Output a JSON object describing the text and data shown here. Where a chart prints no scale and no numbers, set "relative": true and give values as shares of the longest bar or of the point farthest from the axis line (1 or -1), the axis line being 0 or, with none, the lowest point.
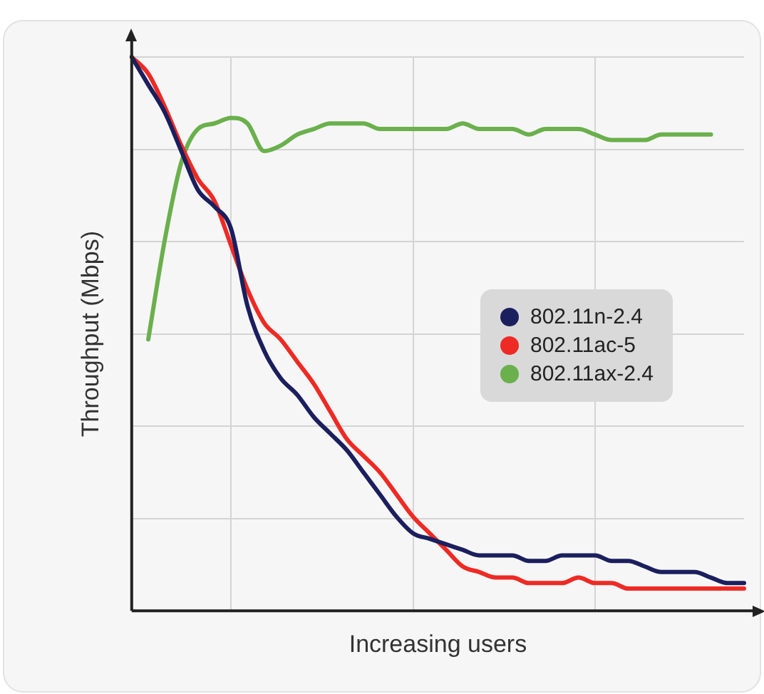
{
  "chart_data": {
    "type": "line",
    "relative": true,
    "xlabel": "Increasing users",
    "ylabel": "Throughput (Mbps)",
    "grid": true,
    "legend": "right",
    "marker": "none",
    "line_style": "solid",
    "categories": [
      null,
      null,
      null,
      null,
      null,
      null,
      null,
      null,
      null,
      null,
      null,
      null,
      null,
      null,
      null,
      null,
      null,
      null,
      null,
      null,
      null,
      null,
      null,
      null,
      null,
      null,
      null,
      null,
      null,
      null,
      null,
      null,
      null,
      null,
      null,
      null,
      null,
      null
    ],
    "series": [
      {
        "name": "802.11n-2.4",
        "color": "#1b1f5e",
        "values": [
          1.0,
          0.95,
          0.9,
          0.83,
          0.76,
          0.73,
          0.69,
          0.55,
          0.47,
          0.42,
          0.39,
          0.35,
          0.32,
          0.29,
          0.25,
          0.21,
          0.17,
          0.14,
          0.13,
          0.12,
          0.11,
          0.1,
          0.1,
          0.1,
          0.09,
          0.09,
          0.1,
          0.1,
          0.1,
          0.09,
          0.09,
          0.08,
          0.07,
          0.07,
          0.07,
          0.06,
          0.05,
          0.05
        ]
      },
      {
        "name": "802.11ac-5",
        "color": "#ee2a24",
        "values": [
          1.0,
          0.97,
          0.91,
          0.84,
          0.78,
          0.74,
          0.66,
          0.58,
          0.52,
          0.49,
          0.45,
          0.41,
          0.36,
          0.31,
          0.28,
          0.25,
          0.21,
          0.17,
          0.14,
          0.11,
          0.08,
          0.07,
          0.06,
          0.06,
          0.05,
          0.05,
          0.05,
          0.06,
          0.05,
          0.05,
          0.04,
          0.04,
          0.04,
          0.04,
          0.04,
          0.04,
          0.04,
          0.04
        ]
      },
      {
        "name": "802.11ax-2.4",
        "color": "#6ab04c",
        "values": [
          null,
          0.49,
          0.67,
          0.81,
          0.87,
          0.88,
          0.89,
          0.88,
          0.83,
          0.84,
          0.86,
          0.87,
          0.88,
          0.88,
          0.88,
          0.87,
          0.87,
          0.87,
          0.87,
          0.87,
          0.88,
          0.87,
          0.87,
          0.87,
          0.86,
          0.87,
          0.87,
          0.87,
          0.86,
          0.85,
          0.85,
          0.85,
          0.86,
          0.86,
          0.86,
          0.86,
          null,
          null
        ]
      }
    ]
  }
}
